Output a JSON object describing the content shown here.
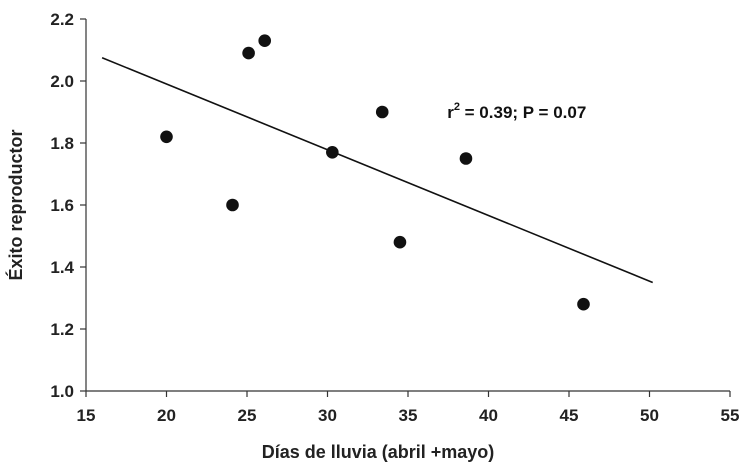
{
  "chart_data": {
    "type": "scatter",
    "xlabel": "Días de lluvia (abril +mayo)",
    "ylabel": "Éxito reproductor",
    "xlim": [
      15,
      55
    ],
    "ylim": [
      1.0,
      2.2
    ],
    "xticks": [
      15,
      20,
      25,
      30,
      35,
      40,
      45,
      50,
      55
    ],
    "yticks": [
      1.0,
      1.2,
      1.4,
      1.6,
      1.8,
      2.0,
      2.2
    ],
    "xtick_labels": [
      "15",
      "20",
      "25",
      "30",
      "35",
      "40",
      "45",
      "50",
      "55"
    ],
    "ytick_labels": [
      "1.0",
      "1.2",
      "1.4",
      "1.6",
      "1.8",
      "2.0",
      "2.2"
    ],
    "grid": false,
    "legend": "none",
    "points": [
      {
        "x": 20.0,
        "y": 1.82
      },
      {
        "x": 24.1,
        "y": 1.6
      },
      {
        "x": 25.1,
        "y": 2.09
      },
      {
        "x": 26.1,
        "y": 2.13
      },
      {
        "x": 30.3,
        "y": 1.77
      },
      {
        "x": 33.4,
        "y": 1.9
      },
      {
        "x": 34.5,
        "y": 1.48
      },
      {
        "x": 38.6,
        "y": 1.75
      },
      {
        "x": 45.9,
        "y": 1.28
      }
    ],
    "trendline": {
      "x": [
        16.0,
        50.2
      ],
      "y": [
        2.075,
        1.35
      ]
    },
    "annotation": {
      "r_label": "r",
      "r_exponent": "2",
      "rest": " = 0.39; P = 0.07",
      "anchor_x": 37.0,
      "anchor_y": 1.9
    },
    "colors": {
      "marker": "#111111",
      "line": "#111111",
      "axis": "#333333"
    }
  }
}
